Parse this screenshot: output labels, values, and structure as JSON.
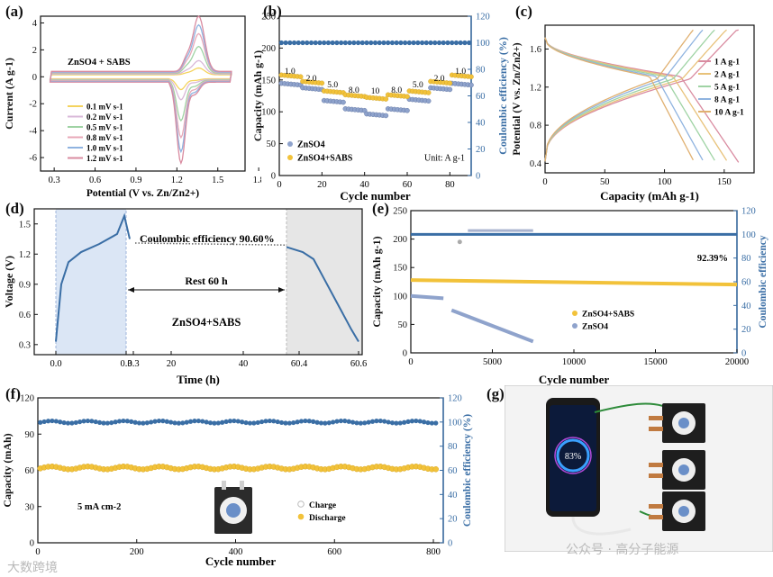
{
  "panel_labels": {
    "a": "(a)",
    "b": "(b)",
    "c": "(c)",
    "d": "(d)",
    "e": "(e)",
    "f": "(f)",
    "g": "(g)"
  },
  "colors": {
    "blue": "#3a6ea5",
    "yellow": "#f2c23a",
    "lightblue": "#8fa3cc",
    "gray": "#888888",
    "cv": [
      "#f4d35e",
      "#d9b8d8",
      "#9fd3a4",
      "#e8a8b8",
      "#8fb3e0",
      "#d98ba0"
    ]
  },
  "watermark": {
    "left": "大数跨境",
    "right": "公众号 · 高分子能源"
  },
  "chart_data": [
    {
      "id": "a",
      "type": "line",
      "xlabel": "Potential (V vs. Zn/Zn2+)",
      "ylabel": "Current (A g-1)",
      "xlim": [
        0.2,
        1.7
      ],
      "ylim": [
        -7,
        4.5
      ],
      "xticks": [
        "0.3",
        "0.6",
        "0.9",
        "1.2",
        "1.5",
        "1.8"
      ],
      "yticks": [
        "4",
        "2",
        "0",
        "-2",
        "-4",
        "-6"
      ],
      "annotation": "ZnSO4 + SABS",
      "legend": [
        "0.1 mV s-1",
        "0.2 mV s-1",
        "0.5 mV s-1",
        "0.8 mV s-1",
        "1.0 mV s-1",
        "1.2 mV s-1"
      ],
      "series": [
        {
          "name": "0.1 mV s-1",
          "anodic_peak": 0.5,
          "cathodic_peak": -0.8
        },
        {
          "name": "0.2 mV s-1",
          "anodic_peak": 1.0,
          "cathodic_peak": -1.5
        },
        {
          "name": "0.5 mV s-1",
          "anodic_peak": 2.0,
          "cathodic_peak": -3.0
        },
        {
          "name": "0.8 mV s-1",
          "anodic_peak": 2.9,
          "cathodic_peak": -4.2
        },
        {
          "name": "1.0 mV s-1",
          "anodic_peak": 3.5,
          "cathodic_peak": -5.2
        },
        {
          "name": "1.2 mV s-1",
          "anodic_peak": 4.1,
          "cathodic_peak": -6.0
        }
      ]
    },
    {
      "id": "b",
      "type": "scatter",
      "xlabel": "Cycle number",
      "ylabel": "Capacity (mAh g-1)",
      "ylabel2": "Coulombic efficiency (%)",
      "xlim": [
        0,
        90
      ],
      "ylim": [
        0,
        250
      ],
      "ylim2": [
        0,
        120
      ],
      "xticks": [
        "0",
        "20",
        "40",
        "60",
        "80"
      ],
      "yticks": [
        "0",
        "50",
        "100",
        "150",
        "200",
        "250"
      ],
      "yticks2": [
        "0",
        "20",
        "40",
        "60",
        "80",
        "100",
        "120"
      ],
      "rate_labels": [
        "1.0",
        "2.0",
        "5.0",
        "8.0",
        "10",
        "8.0",
        "5.0",
        "2.0",
        "1.0"
      ],
      "unit_note": "Unit: A g-1",
      "legend": [
        "ZnSO4",
        "ZnSO4+SABS"
      ],
      "series": [
        {
          "name": "ZnSO4",
          "values_by_step": [
            145,
            138,
            118,
            105,
            97,
            105,
            120,
            138,
            145
          ]
        },
        {
          "name": "ZnSO4+SABS",
          "values_by_step": [
            158,
            148,
            133,
            127,
            123,
            127,
            133,
            148,
            158
          ]
        },
        {
          "name": "CE",
          "value": 100
        }
      ]
    },
    {
      "id": "c",
      "type": "line",
      "xlabel": "Capacity (mAh g-1)",
      "ylabel": "Potential (V vs. Zn/Zn2+)",
      "xlim": [
        0,
        175
      ],
      "ylim": [
        0.3,
        1.85
      ],
      "xticks": [
        "0",
        "50",
        "100",
        "150"
      ],
      "yticks": [
        "0.4",
        "0.8",
        "1.2",
        "1.6"
      ],
      "legend": [
        "1 A g-1",
        "2 A g-1",
        "5 A g-1",
        "8 A g-1",
        "10 A g-1"
      ],
      "series": [
        {
          "name": "1 A g-1",
          "max_capacity": 162
        },
        {
          "name": "2 A g-1",
          "max_capacity": 153
        },
        {
          "name": "5 A g-1",
          "max_capacity": 143
        },
        {
          "name": "8 A g-1",
          "max_capacity": 133
        },
        {
          "name": "10 A g-1",
          "max_capacity": 125
        }
      ]
    },
    {
      "id": "d",
      "type": "line",
      "xlabel": "Time (h)",
      "ylabel": "Voltage (V)",
      "ylim": [
        0.2,
        1.65
      ],
      "xticks": [
        "0.0",
        "0.3",
        "0.3",
        "20",
        "40",
        "60.4",
        "60.6"
      ],
      "yticks": [
        "0.3",
        "0.6",
        "0.9",
        "1.2",
        "1.5"
      ],
      "annotations": [
        "Coulombic efficiency 90.60%",
        "Rest 60 h",
        "ZnSO4+SABS"
      ]
    },
    {
      "id": "e",
      "type": "scatter",
      "xlabel": "Cycle number",
      "ylabel": "Capacity (mAh g-1)",
      "ylabel2": "Coulombic efficiency",
      "xlim": [
        0,
        20000
      ],
      "ylim": [
        0,
        250
      ],
      "ylim2": [
        0,
        120
      ],
      "xticks": [
        "0",
        "5000",
        "10000",
        "15000",
        "20000"
      ],
      "yticks": [
        "0",
        "50",
        "100",
        "150",
        "200",
        "250"
      ],
      "yticks2": [
        "0",
        "20",
        "40",
        "60",
        "80",
        "100",
        "120"
      ],
      "annotation": "92.39%",
      "legend": [
        "ZnSO4+SABS",
        "ZnSO4"
      ],
      "series": [
        {
          "name": "ZnSO4+SABS",
          "start": 128,
          "end": 120
        },
        {
          "name": "ZnSO4",
          "points": [
            [
              0,
              100
            ],
            [
              2000,
              96
            ],
            [
              2500,
              75
            ],
            [
              7500,
              20
            ]
          ]
        },
        {
          "name": "CE",
          "value": 100
        }
      ]
    },
    {
      "id": "f",
      "type": "scatter",
      "xlabel": "Cycle number",
      "ylabel": "Capacity (mAh)",
      "ylabel2": "Coulombic efficiency (%)",
      "xlim": [
        0,
        820
      ],
      "ylim": [
        0,
        120
      ],
      "ylim2": [
        0,
        120
      ],
      "xticks": [
        "0",
        "200",
        "400",
        "600",
        "800"
      ],
      "yticks": [
        "0",
        "30",
        "60",
        "90",
        "120"
      ],
      "yticks2": [
        "0",
        "20",
        "40",
        "60",
        "80",
        "100",
        "120"
      ],
      "annotation": "5 mA cm-2",
      "legend": [
        "Charge",
        "Discharge"
      ],
      "series": [
        {
          "name": "Charge",
          "value": 62
        },
        {
          "name": "Discharge",
          "value": 62
        },
        {
          "name": "CE",
          "value": 100
        }
      ]
    },
    {
      "id": "g",
      "type": "table",
      "phone_battery": "83%"
    }
  ]
}
